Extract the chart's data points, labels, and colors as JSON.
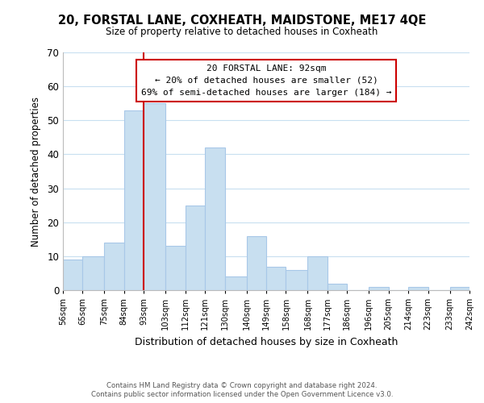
{
  "title": "20, FORSTAL LANE, COXHEATH, MAIDSTONE, ME17 4QE",
  "subtitle": "Size of property relative to detached houses in Coxheath",
  "xlabel": "Distribution of detached houses by size in Coxheath",
  "ylabel": "Number of detached properties",
  "bar_color": "#c8dff0",
  "bar_edge_color": "#a8c8e8",
  "annotation_line_color": "#cc0000",
  "annotation_box_edge": "#cc0000",
  "background_color": "#ffffff",
  "grid_color": "#c8dff0",
  "bins": [
    56,
    65,
    75,
    84,
    93,
    103,
    112,
    121,
    130,
    140,
    149,
    158,
    168,
    177,
    186,
    196,
    205,
    214,
    223,
    233,
    242
  ],
  "values": [
    9,
    10,
    14,
    53,
    55,
    13,
    25,
    42,
    4,
    16,
    7,
    6,
    10,
    2,
    0,
    1,
    0,
    1,
    0,
    1
  ],
  "tick_labels": [
    "56sqm",
    "65sqm",
    "75sqm",
    "84sqm",
    "93sqm",
    "103sqm",
    "112sqm",
    "121sqm",
    "130sqm",
    "140sqm",
    "149sqm",
    "158sqm",
    "168sqm",
    "177sqm",
    "186sqm",
    "196sqm",
    "205sqm",
    "214sqm",
    "223sqm",
    "233sqm",
    "242sqm"
  ],
  "property_line_x": 93,
  "annotation_text_line1": "20 FORSTAL LANE: 92sqm",
  "annotation_text_line2": "← 20% of detached houses are smaller (52)",
  "annotation_text_line3": "69% of semi-detached houses are larger (184) →",
  "ylim": [
    0,
    70
  ],
  "yticks": [
    0,
    10,
    20,
    30,
    40,
    50,
    60,
    70
  ],
  "footnote1": "Contains HM Land Registry data © Crown copyright and database right 2024.",
  "footnote2": "Contains public sector information licensed under the Open Government Licence v3.0."
}
